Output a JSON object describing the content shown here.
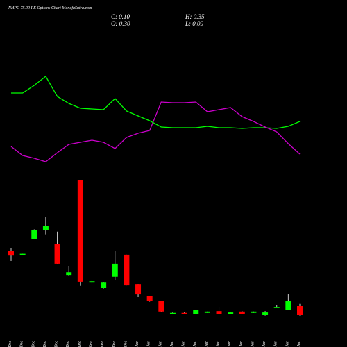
{
  "chart_data": {
    "type": "candlestick",
    "title": "NHPC 75.00 PE Options Chart MunafaSutra.com",
    "readout": {
      "close": "C: 0.10",
      "high": "H: 0.35",
      "open": "O: 0.30",
      "low": "L: 0.09"
    },
    "categories": [
      "15 Dec",
      "16 Dec",
      "17 Dec",
      "19 Dec",
      "22 Dec",
      "23 Dec",
      "24 Dec",
      "26 Dec",
      "29 Dec",
      "30 Dec",
      "31 Dec",
      "01 Jan",
      "02 Jan",
      "05 Jan",
      "06 Jan",
      "07 Jan",
      "08 Jan",
      "09 Jan",
      "12 Jan",
      "13 Jan",
      "14 Jan",
      "16 Jan",
      "19 Jan",
      "20 Jan",
      "21 Jan",
      "22 Jan"
    ],
    "open": [
      1.53,
      1.45,
      1.79,
      1.98,
      1.67,
      0.99,
      3.1,
      0.82,
      0.7,
      0.95,
      1.44,
      0.79,
      0.53,
      0.42,
      0.14,
      0.15,
      0.12,
      0.15,
      0.19,
      0.12,
      0.18,
      0.15,
      0.1,
      0.26,
      0.22,
      0.3
    ],
    "high": [
      1.58,
      1.46,
      2.0,
      2.28,
      1.95,
      1.18,
      3.1,
      0.87,
      0.83,
      1.53,
      1.44,
      0.79,
      0.53,
      0.42,
      0.17,
      0.16,
      0.22,
      0.18,
      0.28,
      0.16,
      0.19,
      0.18,
      0.19,
      0.33,
      0.57,
      0.35
    ],
    "low": [
      1.3,
      1.45,
      1.79,
      1.89,
      1.24,
      0.97,
      0.75,
      0.8,
      0.69,
      0.88,
      0.76,
      0.5,
      0.4,
      0.17,
      0.12,
      0.13,
      0.12,
      0.15,
      0.12,
      0.12,
      0.12,
      0.15,
      0.09,
      0.26,
      0.22,
      0.09
    ],
    "close": [
      1.42,
      1.46,
      1.99,
      2.08,
      1.24,
      1.05,
      0.84,
      0.85,
      0.82,
      1.24,
      0.76,
      0.56,
      0.42,
      0.18,
      0.15,
      0.14,
      0.22,
      0.18,
      0.12,
      0.16,
      0.12,
      0.18,
      0.16,
      0.28,
      0.42,
      0.1
    ],
    "up_color": "#00ff00",
    "down_color": "#ff0000",
    "series": [
      {
        "color": "#00ff00",
        "values": [
          73,
          73,
          78.5,
          85,
          70.5,
          65.5,
          62,
          61.5,
          61,
          69,
          60,
          56.5,
          53,
          48.5,
          48,
          48,
          48,
          49,
          48,
          48,
          47.5,
          48,
          48,
          47.5,
          49,
          52.5
        ]
      },
      {
        "color": "#cc00cc",
        "values": [
          34.5,
          28,
          26,
          23.5,
          30,
          36,
          37.5,
          39,
          37.5,
          33,
          41,
          44,
          46,
          66.5,
          66,
          66,
          66.5,
          59.5,
          61,
          62.5,
          56,
          52.5,
          48.5,
          45,
          36.5,
          29
        ]
      }
    ]
  }
}
